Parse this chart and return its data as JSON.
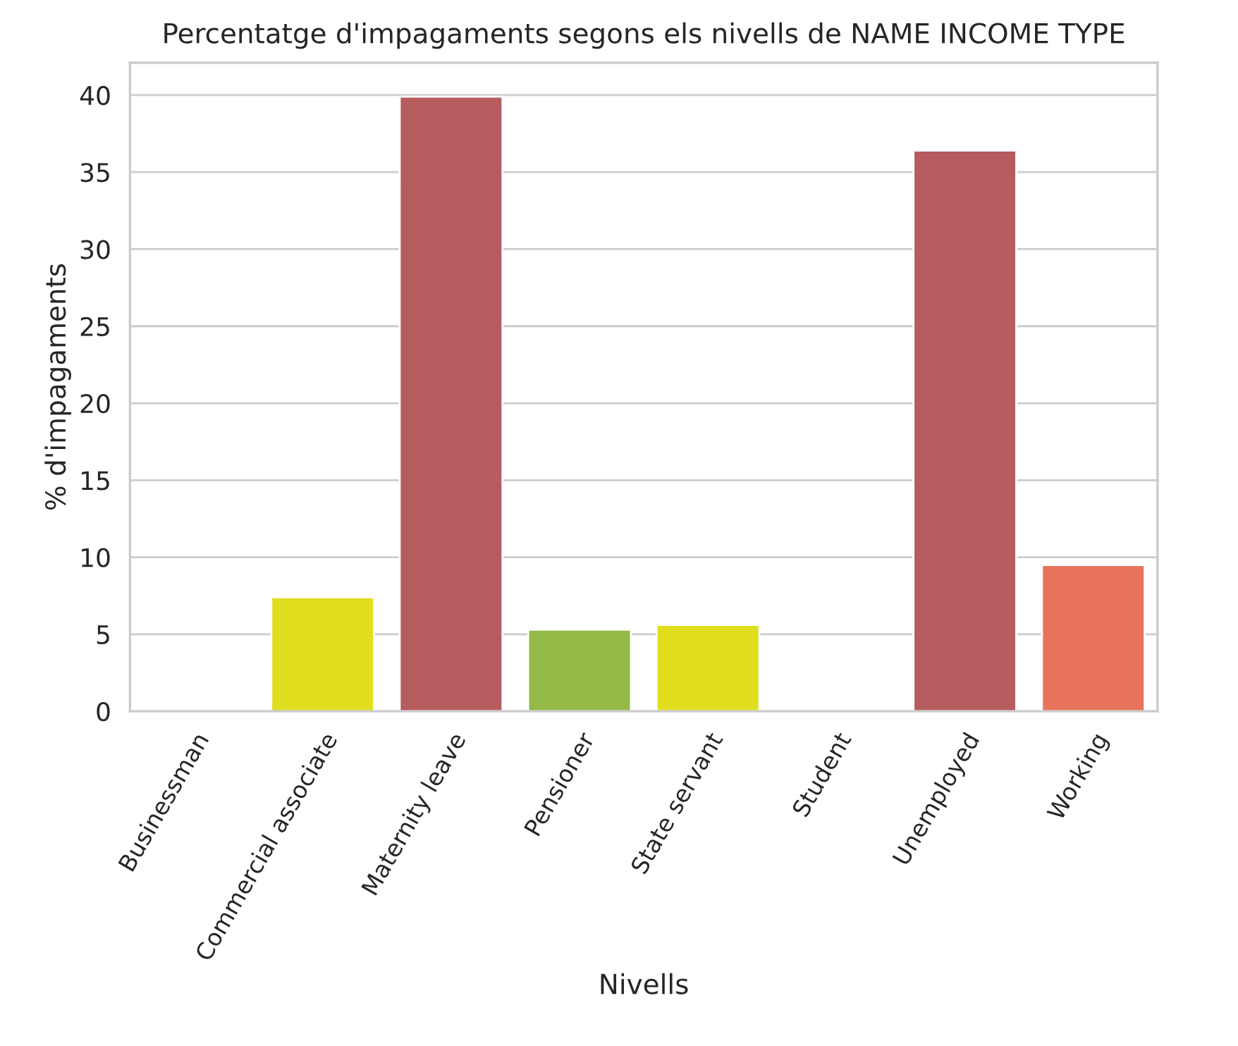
{
  "chart_data": {
    "type": "bar",
    "title": "Percentatge d'impagaments segons els nivells de NAME INCOME TYPE",
    "xlabel": "Nivells",
    "ylabel": "% d'impagaments",
    "categories": [
      "Businessman",
      "Commercial associate",
      "Maternity leave",
      "Pensioner",
      "State servant",
      "Student",
      "Unemployed",
      "Working"
    ],
    "values": [
      0,
      7.4,
      39.9,
      5.3,
      5.6,
      0,
      36.4,
      9.5
    ],
    "colors": [
      null,
      "#e0de1f",
      "#b65c5f",
      "#93b946",
      "#e0de1f",
      null,
      "#b65c5f",
      "#e8735c"
    ],
    "ylim": [
      0,
      42.1
    ],
    "yticks": [
      0,
      5,
      10,
      15,
      20,
      25,
      30,
      35,
      40
    ],
    "grid": "y"
  }
}
